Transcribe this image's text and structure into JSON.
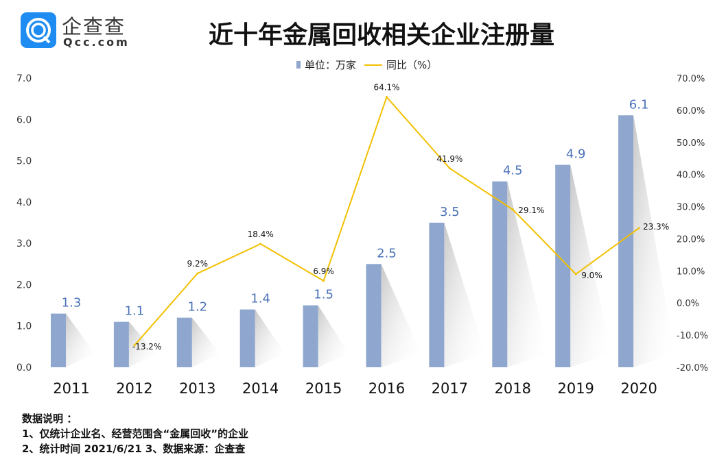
{
  "logo": {
    "cn": "企查查",
    "en": "Qcc.com"
  },
  "title": "近十年金属回收相关企业注册量",
  "legend": {
    "bar": "单位：万家",
    "line": "同比（%）"
  },
  "colors": {
    "bar": "#8fa7ce",
    "line": "#f2c000",
    "bar_label": "#4a72b8"
  },
  "chart_data": {
    "type": "bar",
    "title": "近十年金属回收相关企业注册量",
    "categories": [
      "2011",
      "2012",
      "2013",
      "2014",
      "2015",
      "2016",
      "2017",
      "2018",
      "2019",
      "2020"
    ],
    "series": [
      {
        "name": "单位：万家",
        "type": "bar",
        "axis": "left",
        "values": [
          1.3,
          1.1,
          1.2,
          1.4,
          1.5,
          2.5,
          3.5,
          4.5,
          4.9,
          6.1
        ],
        "labels": [
          "1.3",
          "1.1",
          "1.2",
          "1.4",
          "1.5",
          "2.5",
          "3.5",
          "4.5",
          "4.9",
          "6.1"
        ]
      },
      {
        "name": "同比（%）",
        "type": "line",
        "axis": "right",
        "values": [
          null,
          -13.2,
          9.2,
          18.4,
          6.9,
          64.1,
          41.9,
          29.1,
          9.0,
          23.3
        ],
        "labels": [
          "",
          "-13.2%",
          "9.2%",
          "18.4%",
          "6.9%",
          "64.1%",
          "41.9%",
          "29.1%",
          "9.0%",
          "23.3%"
        ]
      }
    ],
    "ylim": [
      0,
      7
    ],
    "y2lim": [
      -20,
      70
    ],
    "yticks": [
      "0.0",
      "1.0",
      "2.0",
      "3.0",
      "4.0",
      "5.0",
      "6.0",
      "7.0"
    ],
    "y2ticks": [
      "-20.0%",
      "-10.0%",
      "0.0%",
      "10.0%",
      "20.0%",
      "30.0%",
      "40.0%",
      "50.0%",
      "60.0%",
      "70.0%"
    ],
    "grid": false,
    "legend_position": "top-center"
  },
  "notes": {
    "heading": "数据说明 ：",
    "line1": "1、仅统计企业名、经营范围含“金属回收”的企业",
    "line2": "2、统计时间  2021/6/21      3、数据来源：企查查"
  }
}
